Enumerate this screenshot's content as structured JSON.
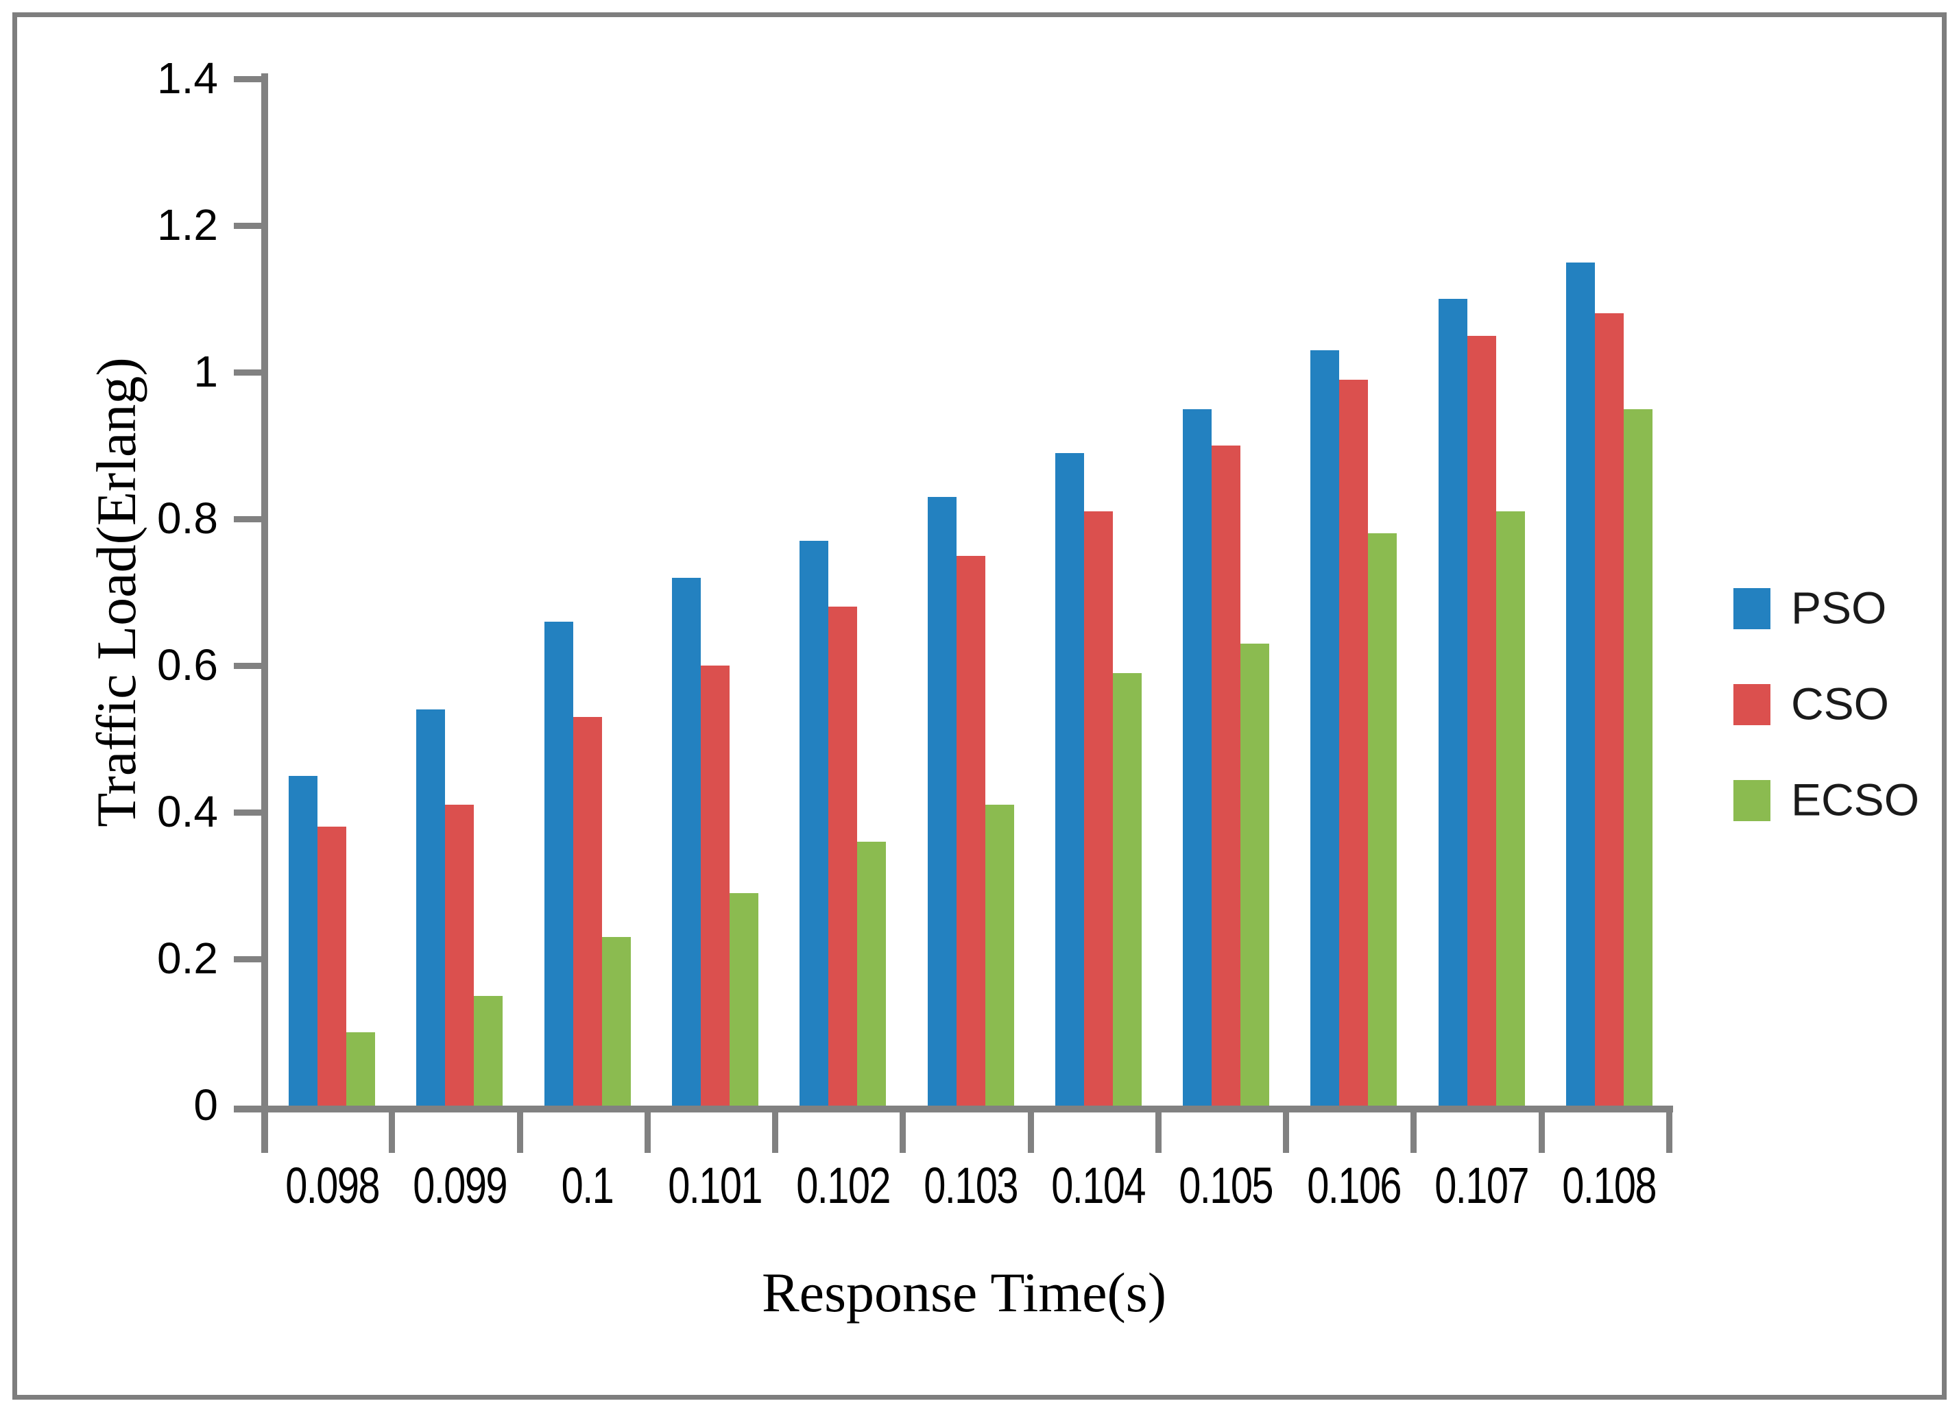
{
  "figure": {
    "background_color": "#ffffff",
    "frame_border_color": "#7e7e7e",
    "axis_color": "#818181"
  },
  "chart_data": {
    "type": "bar",
    "title": "",
    "xlabel": "Response Time(s)",
    "ylabel": "Traffic Load(Erlang)",
    "categories": [
      "0.098",
      "0.099",
      "0.1",
      "0.101",
      "0.102",
      "0.103",
      "0.104",
      "0.105",
      "0.106",
      "0.107",
      "0.108"
    ],
    "series": [
      {
        "name": "PSO",
        "color": "#2381c0",
        "values": [
          0.45,
          0.54,
          0.66,
          0.72,
          0.77,
          0.83,
          0.89,
          0.95,
          1.03,
          1.1,
          1.15
        ]
      },
      {
        "name": "CSO",
        "color": "#db504e",
        "values": [
          0.38,
          0.41,
          0.53,
          0.6,
          0.68,
          0.75,
          0.81,
          0.9,
          0.99,
          1.05,
          1.08
        ]
      },
      {
        "name": "ECSO",
        "color": "#8bbb50",
        "values": [
          0.1,
          0.15,
          0.23,
          0.29,
          0.36,
          0.41,
          0.59,
          0.63,
          0.78,
          0.81,
          0.95
        ]
      }
    ],
    "ylim": [
      0,
      1.4
    ],
    "y_ticks": [
      "0",
      "0.2",
      "0.4",
      "0.6",
      "0.8",
      "1",
      "1.2",
      "1.4"
    ],
    "grid": false,
    "legend_position": "right"
  }
}
